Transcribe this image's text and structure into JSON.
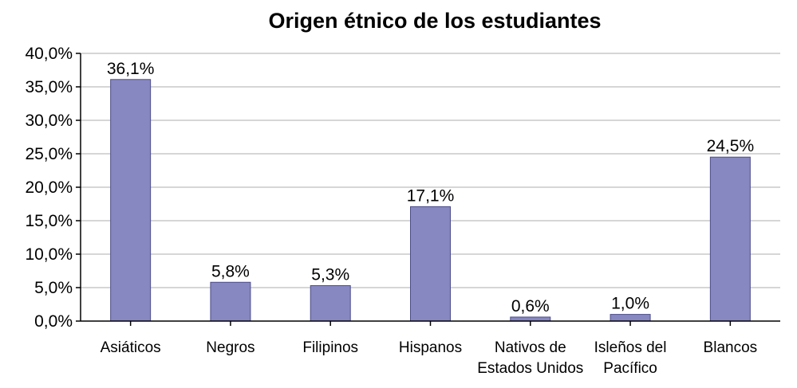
{
  "chart_data": {
    "type": "bar",
    "title": "Origen étnico de los estudiantes",
    "xlabel": "",
    "ylabel": "",
    "categories": [
      [
        "Asiáticos"
      ],
      [
        "Negros"
      ],
      [
        "Filipinos"
      ],
      [
        "Hispanos"
      ],
      [
        "Nativos de",
        "Estados Unidos"
      ],
      [
        "Isleños del",
        "Pacífico"
      ],
      [
        "Blancos"
      ]
    ],
    "values": [
      36.1,
      5.8,
      5.3,
      17.1,
      0.6,
      1.0,
      24.5
    ],
    "data_labels": [
      "36,1%",
      "5,8%",
      "5,3%",
      "17,1%",
      "0,6%",
      "1,0%",
      "24,5%"
    ],
    "ylim": [
      0,
      40
    ],
    "y_ticks": [
      0,
      5,
      10,
      15,
      20,
      25,
      30,
      35,
      40
    ],
    "y_tick_labels": [
      "0,0%",
      "5,0%",
      "10,0%",
      "15,0%",
      "20,0%",
      "25,0%",
      "30,0%",
      "35,0%",
      "40,0%"
    ],
    "grid": true,
    "legend": "none",
    "bar_color": "#8787c2"
  }
}
